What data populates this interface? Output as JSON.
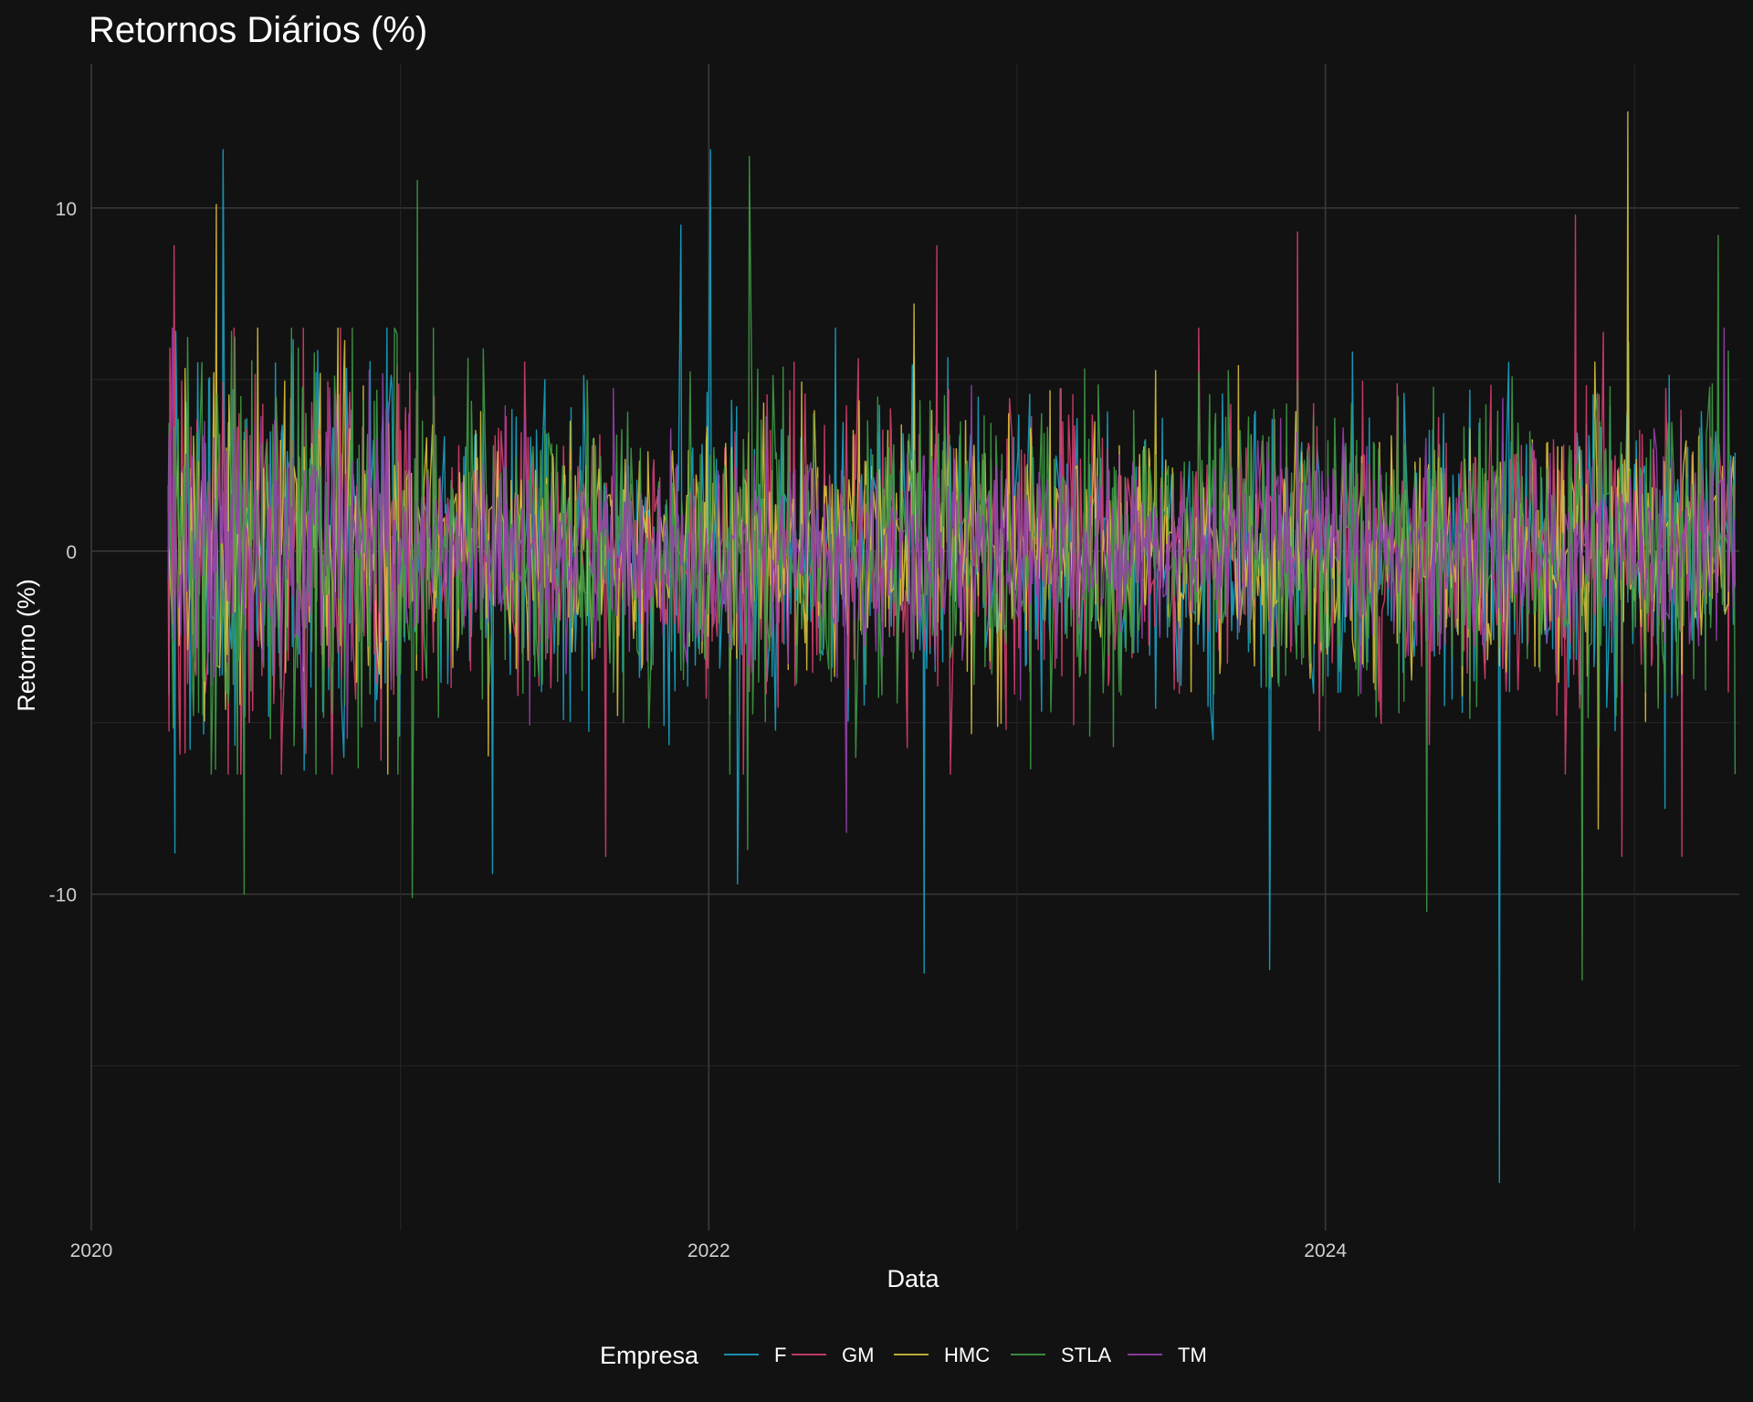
{
  "chart_data": {
    "type": "line",
    "title": "Retornos Diários (%)",
    "xlabel": "Data",
    "ylabel": "Retorno (%)",
    "x_range": [
      "2020-01-01",
      "2025-05-05"
    ],
    "x_data_range": [
      "2020-04-01",
      "2025-04-30"
    ],
    "xlim": [
      "2020-01-01",
      "2025-05-05"
    ],
    "ylim": [
      -19.8,
      14.2
    ],
    "x_ticks": [
      {
        "date": "2020-01-01",
        "label": "2020"
      },
      {
        "date": "2022-01-01",
        "label": "2022"
      },
      {
        "date": "2024-01-01",
        "label": "2024"
      }
    ],
    "y_ticks": [
      {
        "value": 10,
        "label": "10"
      },
      {
        "value": 0,
        "label": "0"
      },
      {
        "value": -10,
        "label": "-10"
      }
    ],
    "grid": true,
    "legend": {
      "title": "Empresa",
      "position": "bottom"
    },
    "series": [
      {
        "name": "F",
        "color": "#1aa3c4",
        "typical_abs_return": 2.0,
        "extremes": [
          {
            "date": "2020-04-09",
            "value": -8.8
          },
          {
            "date": "2020-06-05",
            "value": 11.7
          },
          {
            "date": "2021-04-20",
            "value": -9.4
          },
          {
            "date": "2021-11-29",
            "value": 9.5
          },
          {
            "date": "2022-01-02",
            "value": 11.7
          },
          {
            "date": "2022-02-04",
            "value": -9.7
          },
          {
            "date": "2022-09-13",
            "value": -12.3
          },
          {
            "date": "2023-10-27",
            "value": -12.2
          },
          {
            "date": "2024-07-25",
            "value": -18.4
          },
          {
            "date": "2025-02-06",
            "value": -7.5
          }
        ]
      },
      {
        "name": "GM",
        "color": "#d63f6e",
        "typical_abs_return": 2.0,
        "extremes": [
          {
            "date": "2020-04-08",
            "value": 8.9
          },
          {
            "date": "2021-09-01",
            "value": -8.9
          },
          {
            "date": "2022-09-28",
            "value": 8.9
          },
          {
            "date": "2023-11-29",
            "value": 9.3
          },
          {
            "date": "2024-10-23",
            "value": 9.8
          },
          {
            "date": "2024-12-17",
            "value": -8.9
          },
          {
            "date": "2025-02-26",
            "value": -8.9
          }
        ]
      },
      {
        "name": "HMC",
        "color": "#d8c13a",
        "typical_abs_return": 1.6,
        "extremes": [
          {
            "date": "2020-05-28",
            "value": 10.1
          },
          {
            "date": "2022-09-01",
            "value": 7.2
          },
          {
            "date": "2024-12-24",
            "value": 12.8
          },
          {
            "date": "2024-11-19",
            "value": -8.1
          }
        ]
      },
      {
        "name": "STLA",
        "color": "#3f9b45",
        "typical_abs_return": 2.2,
        "extremes": [
          {
            "date": "2020-06-30",
            "value": -10.0
          },
          {
            "date": "2021-01-21",
            "value": 10.8
          },
          {
            "date": "2021-01-15",
            "value": -10.1
          },
          {
            "date": "2022-02-18",
            "value": 11.5
          },
          {
            "date": "2022-02-16",
            "value": -8.7
          },
          {
            "date": "2024-04-30",
            "value": -10.5
          },
          {
            "date": "2024-10-31",
            "value": -12.5
          },
          {
            "date": "2025-04-10",
            "value": 9.2
          }
        ]
      },
      {
        "name": "TM",
        "color": "#9640ab",
        "typical_abs_return": 1.4,
        "extremes": [
          {
            "date": "2022-06-13",
            "value": -8.2
          },
          {
            "date": "2025-04-17",
            "value": 6.5
          }
        ]
      }
    ]
  }
}
